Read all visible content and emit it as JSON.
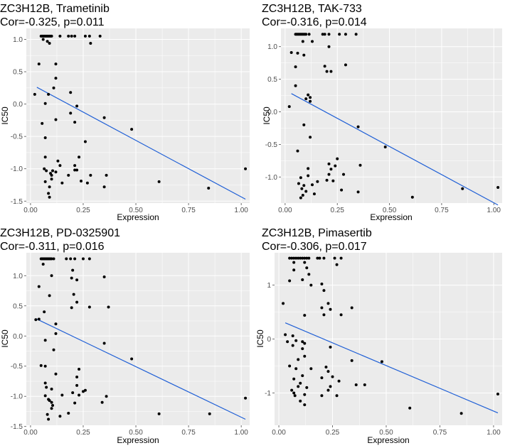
{
  "figure": {
    "colors": {
      "panel_bg": "#ebebeb",
      "grid_major": "#ffffff",
      "point": "#000000",
      "fit_line": "#1f5fd6",
      "tick": "#4d4d4d"
    }
  },
  "chart_data": [
    {
      "type": "scatter",
      "title_line1": "ZC3H12B, Trametinib",
      "title_line2": "Cor=-0.325, p=0.011",
      "xlabel": "Expression",
      "ylabel": "IC50",
      "xlim": [
        -0.02,
        1.04
      ],
      "ylim": [
        -1.53,
        1.17
      ],
      "xticks": [
        0,
        0.25,
        0.5,
        0.75,
        1
      ],
      "xtick_labels": [
        "0.00",
        "0.25",
        "0.50",
        "0.75",
        "1.00"
      ],
      "yticks": [
        -1.5,
        -1,
        -0.5,
        0,
        0.5,
        1
      ],
      "ytick_labels": [
        "-1.5",
        "-1.0",
        "-0.5",
        "0.0",
        "0.5",
        "1.0"
      ],
      "fit_line": [
        [
          0.03,
          0.26
        ],
        [
          1.02,
          -1.47
        ]
      ],
      "points": [
        [
          0.05,
          1.05
        ],
        [
          0.055,
          1.05
        ],
        [
          0.06,
          1.05
        ],
        [
          0.065,
          1.05
        ],
        [
          0.07,
          1.05
        ],
        [
          0.075,
          1.05
        ],
        [
          0.08,
          1.05
        ],
        [
          0.085,
          1.05
        ],
        [
          0.09,
          1.05
        ],
        [
          0.095,
          1.05
        ],
        [
          0.1,
          1.05
        ],
        [
          0.14,
          1.05
        ],
        [
          0.18,
          1.05
        ],
        [
          0.195,
          1.05
        ],
        [
          0.21,
          1.05
        ],
        [
          0.26,
          1.05
        ],
        [
          0.28,
          1.05
        ],
        [
          0.33,
          1.05
        ],
        [
          0.06,
          1.0
        ],
        [
          0.08,
          0.97
        ],
        [
          0.09,
          0.94
        ],
        [
          0.285,
          0.94
        ],
        [
          0.04,
          0.62
        ],
        [
          0.12,
          0.62
        ],
        [
          0.12,
          0.4
        ],
        [
          0.11,
          0.25
        ],
        [
          0.02,
          0.15
        ],
        [
          0.085,
          0.15
        ],
        [
          0.19,
          0.18
        ],
        [
          0.07,
          0.01
        ],
        [
          0.22,
          -0.03
        ],
        [
          0.19,
          -0.14
        ],
        [
          0.055,
          -0.3
        ],
        [
          0.12,
          -0.24
        ],
        [
          0.21,
          -0.28
        ],
        [
          0.35,
          -0.21
        ],
        [
          0.48,
          -0.39
        ],
        [
          0.07,
          -0.52
        ],
        [
          0.26,
          -0.58
        ],
        [
          0.07,
          -0.82
        ],
        [
          0.23,
          -0.82
        ],
        [
          0.13,
          -0.88
        ],
        [
          0.14,
          -0.95
        ],
        [
          0.21,
          -0.95
        ],
        [
          0.065,
          -1.0
        ],
        [
          0.075,
          -1.03
        ],
        [
          0.095,
          -1.07
        ],
        [
          0.105,
          -1.03
        ],
        [
          0.12,
          -1.05
        ],
        [
          0.21,
          -1.02
        ],
        [
          0.22,
          -1.02
        ],
        [
          0.1,
          -1.1
        ],
        [
          0.18,
          -1.1
        ],
        [
          0.285,
          -1.1
        ],
        [
          0.36,
          -1.1
        ],
        [
          0.1,
          -1.16
        ],
        [
          0.07,
          -1.2
        ],
        [
          0.24,
          -1.19
        ],
        [
          0.15,
          -1.22
        ],
        [
          0.27,
          -1.22
        ],
        [
          0.61,
          -1.2
        ],
        [
          0.35,
          -1.28
        ],
        [
          1.02,
          -1.0
        ],
        [
          0.09,
          -1.28
        ],
        [
          0.085,
          -1.38
        ],
        [
          0.09,
          -1.44
        ],
        [
          0.845,
          -1.3
        ]
      ]
    },
    {
      "type": "scatter",
      "title_line1": "ZC3H12B, TAK-733",
      "title_line2": "Cor=-0.316, p=0.014",
      "xlabel": "Expression",
      "ylabel": "IC50",
      "xlim": [
        -0.02,
        1.04
      ],
      "ylim": [
        -1.4,
        1.28
      ],
      "xticks": [
        0,
        0.25,
        0.5,
        0.75,
        1
      ],
      "xtick_labels": [
        "0.00",
        "0.25",
        "0.50",
        "0.75",
        "1.00"
      ],
      "yticks": [
        -1,
        -0.5,
        0,
        0.5,
        1
      ],
      "ytick_labels": [
        "-1.0",
        "-0.5",
        "0.0",
        "0.5",
        "1.0"
      ],
      "fit_line": [
        [
          0.03,
          0.28
        ],
        [
          1.02,
          -1.43
        ]
      ],
      "points": [
        [
          0.05,
          1.19
        ],
        [
          0.055,
          1.19
        ],
        [
          0.06,
          1.19
        ],
        [
          0.065,
          1.19
        ],
        [
          0.07,
          1.19
        ],
        [
          0.075,
          1.19
        ],
        [
          0.08,
          1.19
        ],
        [
          0.085,
          1.19
        ],
        [
          0.09,
          1.19
        ],
        [
          0.095,
          1.19
        ],
        [
          0.1,
          1.19
        ],
        [
          0.115,
          1.19
        ],
        [
          0.18,
          1.19
        ],
        [
          0.19,
          1.19
        ],
        [
          0.21,
          1.19
        ],
        [
          0.26,
          1.19
        ],
        [
          0.29,
          1.19
        ],
        [
          0.34,
          1.19
        ],
        [
          0.085,
          1.08
        ],
        [
          0.13,
          1.08
        ],
        [
          0.21,
          1.0
        ],
        [
          0.03,
          0.91
        ],
        [
          0.06,
          0.9
        ],
        [
          0.09,
          0.87
        ],
        [
          0.05,
          0.69
        ],
        [
          0.19,
          0.7
        ],
        [
          0.2,
          0.62
        ],
        [
          0.22,
          0.62
        ],
        [
          0.29,
          0.72
        ],
        [
          0.05,
          0.4
        ],
        [
          0.11,
          0.26
        ],
        [
          0.12,
          0.22
        ],
        [
          0.1,
          0.2
        ],
        [
          0.12,
          0.16
        ],
        [
          0.02,
          0.08
        ],
        [
          0.09,
          -0.2
        ],
        [
          0.12,
          -0.39
        ],
        [
          0.35,
          -0.23
        ],
        [
          0.48,
          -0.54
        ],
        [
          0.06,
          -0.6
        ],
        [
          0.25,
          -0.72
        ],
        [
          0.21,
          -0.8
        ],
        [
          0.24,
          -0.83
        ],
        [
          0.36,
          -0.82
        ],
        [
          0.11,
          -0.87
        ],
        [
          0.22,
          -0.88
        ],
        [
          0.21,
          -0.96
        ],
        [
          0.28,
          -0.96
        ],
        [
          0.075,
          -1.01
        ],
        [
          0.11,
          -0.98
        ],
        [
          0.2,
          -1.05
        ],
        [
          0.23,
          -1.06
        ],
        [
          0.065,
          -1.1
        ],
        [
          0.09,
          -1.13
        ],
        [
          0.08,
          -1.18
        ],
        [
          0.13,
          -1.12
        ],
        [
          0.155,
          -1.07
        ],
        [
          0.1,
          -1.22
        ],
        [
          0.14,
          -1.26
        ],
        [
          0.27,
          -1.2
        ],
        [
          0.35,
          -1.23
        ],
        [
          0.085,
          -1.28
        ],
        [
          0.075,
          -1.32
        ],
        [
          0.61,
          -1.31
        ],
        [
          0.85,
          -1.18
        ],
        [
          1.02,
          -1.16
        ]
      ]
    },
    {
      "type": "scatter",
      "title_line1": "ZC3H12B, PD-0325901",
      "title_line2": "Cor=-0.311, p=0.016",
      "xlabel": "Expression",
      "ylabel": "IC50",
      "xlim": [
        -0.02,
        1.04
      ],
      "ylim": [
        -1.48,
        1.38
      ],
      "xticks": [
        0,
        0.25,
        0.5,
        0.75,
        1
      ],
      "xtick_labels": [
        "0.00",
        "0.25",
        "0.50",
        "0.75",
        "1.00"
      ],
      "yticks": [
        -1.5,
        -1,
        -0.5,
        0,
        0.5,
        1
      ],
      "ytick_labels": [
        "-1.5",
        "-1.0",
        "-0.5",
        "0.0",
        "0.5",
        "1.0"
      ],
      "fit_line": [
        [
          0.03,
          0.28
        ],
        [
          1.02,
          -1.38
        ]
      ],
      "points": [
        [
          0.05,
          1.28
        ],
        [
          0.055,
          1.28
        ],
        [
          0.06,
          1.28
        ],
        [
          0.065,
          1.28
        ],
        [
          0.07,
          1.28
        ],
        [
          0.075,
          1.28
        ],
        [
          0.08,
          1.28
        ],
        [
          0.085,
          1.28
        ],
        [
          0.09,
          1.28
        ],
        [
          0.095,
          1.28
        ],
        [
          0.1,
          1.28
        ],
        [
          0.11,
          1.28
        ],
        [
          0.17,
          1.28
        ],
        [
          0.19,
          1.28
        ],
        [
          0.21,
          1.28
        ],
        [
          0.25,
          1.28
        ],
        [
          0.28,
          1.28
        ],
        [
          0.06,
          1.19
        ],
        [
          0.1,
          1.0
        ],
        [
          0.2,
          1.09
        ],
        [
          0.195,
          0.96
        ],
        [
          0.22,
          0.93
        ],
        [
          0.35,
          0.98
        ],
        [
          0.04,
          0.82
        ],
        [
          0.205,
          0.69
        ],
        [
          0.09,
          0.67
        ],
        [
          0.37,
          0.48
        ],
        [
          0.28,
          0.48
        ],
        [
          0.22,
          0.56
        ],
        [
          0.195,
          0.47
        ],
        [
          0.065,
          0.4
        ],
        [
          0.025,
          0.27
        ],
        [
          0.04,
          0.28
        ],
        [
          0.12,
          0.2
        ],
        [
          0.12,
          0.04
        ],
        [
          0.07,
          -0.07
        ],
        [
          0.11,
          -0.23
        ],
        [
          0.35,
          -0.12
        ],
        [
          0.48,
          -0.38
        ],
        [
          0.05,
          -0.49
        ],
        [
          0.07,
          -0.5
        ],
        [
          0.23,
          -0.55
        ],
        [
          0.12,
          -0.63
        ],
        [
          0.22,
          -0.68
        ],
        [
          0.07,
          -0.78
        ],
        [
          0.075,
          -0.85
        ],
        [
          0.22,
          -0.82
        ],
        [
          0.1,
          -0.88
        ],
        [
          0.15,
          -0.98
        ],
        [
          0.25,
          -0.92
        ],
        [
          0.26,
          -0.9
        ],
        [
          0.2,
          -0.94
        ],
        [
          0.23,
          -0.98
        ],
        [
          0.36,
          -1.0
        ],
        [
          0.07,
          -0.99
        ],
        [
          0.085,
          -1.05
        ],
        [
          0.09,
          -1.07
        ],
        [
          0.1,
          -1.1
        ],
        [
          0.105,
          -1.15
        ],
        [
          0.1,
          -1.2
        ],
        [
          0.21,
          -1.11
        ],
        [
          0.18,
          -1.28
        ],
        [
          0.34,
          -1.1
        ],
        [
          0.61,
          -1.29
        ],
        [
          0.85,
          -1.29
        ],
        [
          1.02,
          -1.03
        ],
        [
          0.08,
          -1.3
        ],
        [
          0.14,
          -1.33
        ],
        [
          0.085,
          -1.38
        ]
      ]
    },
    {
      "type": "scatter",
      "title_line1": "ZC3H12B, Pimasertib",
      "title_line2": "Cor=-0.306, p=0.017",
      "xlabel": "Expression",
      "ylabel": "IC50",
      "xlim": [
        -0.02,
        1.04
      ],
      "ylim": [
        -1.6,
        1.6
      ],
      "xticks": [
        0,
        0.25,
        0.5,
        0.75,
        1
      ],
      "xtick_labels": [
        "0.00",
        "0.25",
        "0.50",
        "0.75",
        "1.00"
      ],
      "yticks": [
        -1,
        0,
        1
      ],
      "ytick_labels": [
        "-1",
        "0",
        "1"
      ],
      "fit_line": [
        [
          0.03,
          0.3
        ],
        [
          1.02,
          -1.37
        ]
      ],
      "points": [
        [
          0.05,
          1.5
        ],
        [
          0.06,
          1.5
        ],
        [
          0.07,
          1.5
        ],
        [
          0.08,
          1.5
        ],
        [
          0.09,
          1.5
        ],
        [
          0.1,
          1.5
        ],
        [
          0.11,
          1.5
        ],
        [
          0.12,
          1.5
        ],
        [
          0.13,
          1.5
        ],
        [
          0.14,
          1.5
        ],
        [
          0.18,
          1.5
        ],
        [
          0.19,
          1.5
        ],
        [
          0.21,
          1.5
        ],
        [
          0.26,
          1.5
        ],
        [
          0.29,
          1.5
        ],
        [
          0.07,
          1.42
        ],
        [
          0.12,
          1.42
        ],
        [
          0.13,
          1.32
        ],
        [
          0.14,
          1.2
        ],
        [
          0.27,
          1.38
        ],
        [
          0.07,
          1.28
        ],
        [
          0.11,
          1.1
        ],
        [
          0.05,
          1.08
        ],
        [
          0.15,
          1.0
        ],
        [
          0.2,
          1.02
        ],
        [
          0.21,
          0.9
        ],
        [
          0.23,
          0.66
        ],
        [
          0.2,
          0.58
        ],
        [
          0.24,
          0.55
        ],
        [
          0.34,
          0.58
        ],
        [
          0.21,
          0.45
        ],
        [
          0.29,
          0.45
        ],
        [
          0.12,
          0.44
        ],
        [
          0.02,
          0.66
        ],
        [
          0.03,
          0.08
        ],
        [
          0.065,
          0.06
        ],
        [
          0.04,
          -0.05
        ],
        [
          0.08,
          -0.03
        ],
        [
          0.11,
          -0.05
        ],
        [
          0.12,
          -0.08
        ],
        [
          0.065,
          -0.12
        ],
        [
          0.11,
          -0.18
        ],
        [
          0.12,
          -0.32
        ],
        [
          0.09,
          -0.38
        ],
        [
          0.24,
          -0.15
        ],
        [
          0.48,
          -0.42
        ],
        [
          0.05,
          -0.5
        ],
        [
          0.08,
          -0.55
        ],
        [
          0.15,
          -0.55
        ],
        [
          0.22,
          -0.52
        ],
        [
          0.34,
          -0.4
        ],
        [
          0.11,
          -0.68
        ],
        [
          0.23,
          -0.6
        ],
        [
          0.07,
          -0.74
        ],
        [
          0.2,
          -0.72
        ],
        [
          0.25,
          -0.7
        ],
        [
          0.28,
          -0.78
        ],
        [
          0.1,
          -0.82
        ],
        [
          0.09,
          -0.88
        ],
        [
          0.13,
          -0.9
        ],
        [
          0.24,
          -0.88
        ],
        [
          0.36,
          -0.85
        ],
        [
          0.06,
          -0.95
        ],
        [
          0.07,
          -1.0
        ],
        [
          0.075,
          -1.05
        ],
        [
          0.12,
          -1.03
        ],
        [
          0.23,
          -0.95
        ],
        [
          0.2,
          -1.05
        ],
        [
          0.27,
          -1.05
        ],
        [
          0.1,
          -1.15
        ],
        [
          0.12,
          -1.22
        ],
        [
          0.61,
          -1.28
        ],
        [
          0.85,
          -1.38
        ],
        [
          1.02,
          -1.02
        ],
        [
          0.4,
          -0.85
        ]
      ]
    }
  ]
}
